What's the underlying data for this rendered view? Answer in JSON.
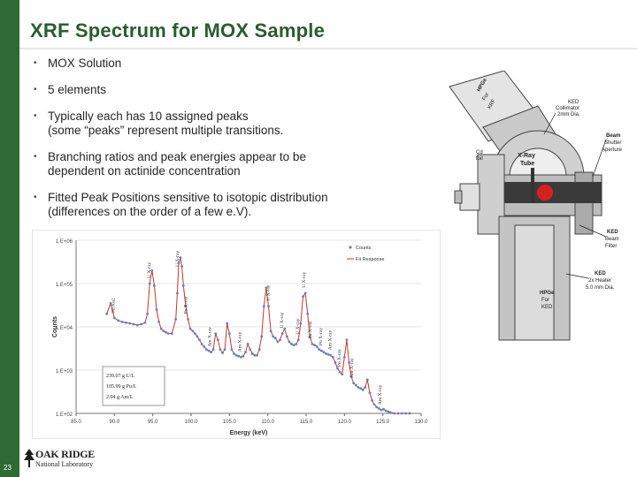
{
  "slide": {
    "title": "XRF Spectrum for MOX Sample",
    "page_number": "23",
    "accent_color": "#2e6b34",
    "title_color": "#2a5d2f"
  },
  "bullets": [
    {
      "text": "MOX Solution"
    },
    {
      "text": "5 elements"
    },
    {
      "text": "Typically each has 10 assigned peaks\n(some “peaks” represent multiple transitions."
    },
    {
      "text": "Branching ratios and peak energies appear to be\ndependent on actinide concentration"
    },
    {
      "text": "Fitted Peak Positions sensitive to isotopic distribution\n(differences on the order of a few e.V)."
    }
  ],
  "logo": {
    "line1": "OAK RIDGE",
    "line2": "National Laboratory",
    "icon": "oak-ridge-tree-icon"
  },
  "diagram": {
    "icon": "xrf-instrument-cross-section",
    "labels": [
      "HPGe",
      "For",
      "XRF",
      "KED",
      "Collimator",
      "2mm Dia.",
      "Beam",
      "Shutter",
      "Aperture",
      "Cd",
      "foil",
      "X-Ray",
      "Tube",
      "KED",
      "Beam",
      "Filter",
      "KED",
      "2x Heater",
      "5.0 mm Dia.",
      "HPGe",
      "For",
      "KED"
    ]
  },
  "chart_data": {
    "type": "line",
    "xlabel": "Energy (keV)",
    "ylabel": "Counts",
    "xlim": [
      85.0,
      130.0
    ],
    "ylim_log10": [
      2,
      6
    ],
    "y_scale": "log",
    "x_ticks": [
      "85.0",
      "90.0",
      "95.0",
      "100.0",
      "105.0",
      "110.0",
      "115.0",
      "120.0",
      "125.0",
      "130.0"
    ],
    "y_ticks": [
      "1.E+02",
      "1.E+03",
      "1.E+04",
      "1.E+05",
      "1.E+06"
    ],
    "legend": {
      "position": "top-right",
      "entries": [
        "Counts",
        "Fit Response"
      ]
    },
    "series": [
      {
        "name": "Counts",
        "color": "#6a7fb8",
        "x": [
          89.0,
          89.5,
          90.0,
          90.5,
          91.0,
          91.5,
          92.0,
          92.5,
          93.0,
          93.5,
          94.0,
          94.3,
          94.6,
          94.9,
          95.2,
          95.5,
          95.8,
          96.1,
          96.4,
          96.7,
          97.0,
          97.5,
          98.0,
          98.2,
          98.4,
          98.6,
          98.8,
          99.0,
          99.3,
          99.6,
          99.9,
          100.2,
          100.5,
          100.8,
          101.1,
          101.4,
          101.7,
          102.0,
          102.3,
          102.6,
          102.9,
          103.2,
          103.5,
          103.8,
          104.1,
          104.4,
          104.7,
          105.0,
          105.3,
          105.6,
          105.9,
          106.2,
          106.5,
          106.8,
          107.1,
          107.4,
          107.7,
          108.0,
          108.3,
          108.6,
          108.9,
          109.2,
          109.5,
          109.8,
          110.1,
          110.4,
          110.7,
          111.0,
          111.3,
          111.6,
          111.9,
          112.2,
          112.5,
          112.8,
          113.1,
          113.4,
          113.7,
          114.0,
          114.3,
          114.6,
          114.9,
          115.2,
          115.5,
          115.8,
          116.1,
          116.4,
          116.7,
          117.0,
          117.3,
          117.6,
          117.9,
          118.2,
          118.5,
          118.8,
          119.1,
          119.4,
          119.7,
          120.0,
          120.3,
          120.6,
          120.9,
          121.2,
          121.5,
          121.8,
          122.1,
          122.4,
          122.7,
          123.0,
          123.3,
          123.6,
          123.9,
          124.2,
          124.5,
          124.8,
          125.1,
          125.4,
          125.7,
          126.0,
          126.5,
          127.0,
          127.5,
          128.0,
          128.5
        ],
        "y": [
          20000,
          35000,
          16000,
          14000,
          13000,
          12500,
          12000,
          11500,
          11000,
          11500,
          12500,
          20000,
          100000,
          200000,
          90000,
          25000,
          13000,
          9000,
          8000,
          7500,
          7000,
          7000,
          15000,
          60000,
          300000,
          400000,
          250000,
          90000,
          30000,
          15000,
          9000,
          8000,
          7000,
          6000,
          5000,
          4000,
          3500,
          3000,
          2800,
          2600,
          3000,
          7000,
          5000,
          3000,
          2500,
          3000,
          12000,
          7000,
          3000,
          2400,
          2200,
          2100,
          2000,
          2100,
          2600,
          4000,
          3000,
          2400,
          2200,
          2200,
          3000,
          6000,
          30000,
          80000,
          30000,
          8000,
          6000,
          5500,
          4500,
          5000,
          7000,
          9000,
          6000,
          4500,
          4000,
          3800,
          4000,
          5000,
          12000,
          50000,
          60000,
          20000,
          6000,
          4000,
          3800,
          3500,
          3000,
          2800,
          2600,
          2400,
          2300,
          2200,
          2000,
          1500,
          1100,
          900,
          800,
          2000,
          5000,
          1500,
          700,
          500,
          450,
          400,
          380,
          350,
          400,
          600,
          300,
          200,
          160,
          140,
          130,
          120,
          125,
          115,
          110,
          105,
          100,
          100,
          100,
          100,
          100
        ]
      },
      {
        "name": "Fit Response",
        "color": "#c0392b"
      }
    ],
    "annotations": [
      {
        "text": "Pu Kα2",
        "x": 90.0
      },
      {
        "text": "U X-ray",
        "x": 94.7
      },
      {
        "text": "U X-ray",
        "x": 98.4
      },
      {
        "text": "Pu X-ray",
        "x": 99.5
      },
      {
        "text": "Am X-ray",
        "x": 102.6
      },
      {
        "text": "Am X-ray",
        "x": 106.5
      },
      {
        "text": "U X-ray",
        "x": 110.2
      },
      {
        "text": "U X-ray",
        "x": 112.0
      },
      {
        "text": "U X-ray",
        "x": 114.1
      },
      {
        "text": "U X-ray",
        "x": 114.9
      },
      {
        "text": "Pu X-ray",
        "x": 115.7
      },
      {
        "text": "Pu X-ray",
        "x": 117.1
      },
      {
        "text": "Pu X-ray",
        "x": 119.5
      },
      {
        "text": "Am X-ray",
        "x": 118.3
      },
      {
        "text": "Am X-ray",
        "x": 121.1
      },
      {
        "text": "Am X-ray",
        "x": 124.8
      }
    ],
    "info_box": [
      "239.07 g U/L",
      "105.99 g Pu/L",
      "2.04 g Am/L"
    ]
  }
}
